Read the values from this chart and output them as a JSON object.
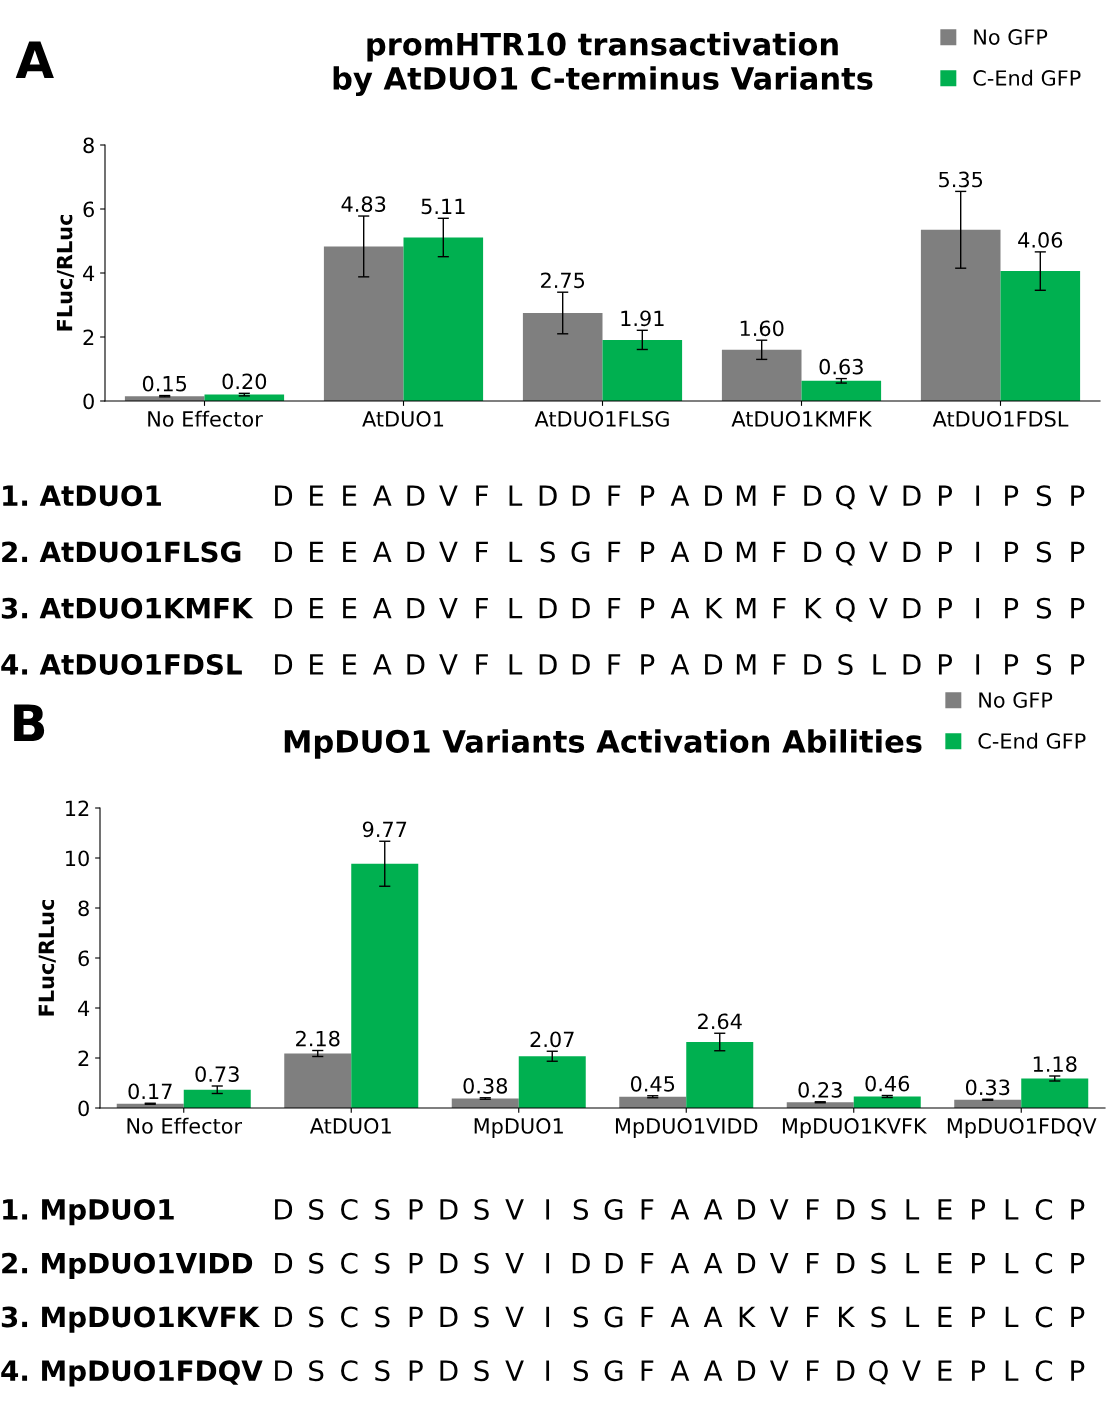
{
  "chart_data": [
    {
      "type": "bar",
      "title": "promHTR10 transactivation\nby AtDUO1 C-terminus Variants",
      "ylabel": "FLuc/RLuc",
      "annotations": [
        "A"
      ],
      "categories": [
        "No Effector",
        "AtDUO1",
        "AtDUO1FLSG",
        "AtDUO1KMFK",
        "AtDUO1FDSL"
      ],
      "series": [
        {
          "name": "No GFP",
          "color": "#7f7f7f",
          "values": [
            0.15,
            4.83,
            2.75,
            1.6,
            5.35
          ],
          "value_labels": [
            "0.15",
            "4.83",
            "2.75",
            "1.60",
            "5.35"
          ],
          "errors": [
            0.02,
            0.95,
            0.65,
            0.3,
            1.2
          ]
        },
        {
          "name": "C-End GFP",
          "color": "#00b050",
          "values": [
            0.2,
            5.11,
            1.91,
            0.63,
            4.06
          ],
          "value_labels": [
            "0.20",
            "5.11",
            "1.91",
            "0.63",
            "4.06"
          ],
          "errors": [
            0.04,
            0.6,
            0.3,
            0.07,
            0.6
          ]
        }
      ],
      "ylim": [
        0,
        8
      ],
      "yticks": [
        0,
        2,
        4,
        6,
        8
      ],
      "legend": "top right",
      "grid": false
    },
    {
      "type": "other",
      "annotations": [
        "1. AtDUO1",
        "DEEADVFLDDFPADMFDQVDPIPSP",
        "2. AtDUO1FLSG",
        "DEEADVFLSGFPADMFDQVDPIPSP",
        "3. AtDUO1KMFK",
        "DEEADVFLDDFPAKMFKQVDPIPSP",
        "4. AtDUO1FDSL",
        "DEEADVFLDDFPADMFDSLDPIPSP"
      ]
    },
    {
      "type": "bar",
      "title": "MpDUO1 Variants Activation Abilities",
      "ylabel": "FLuc/RLuc",
      "annotations": [
        "B"
      ],
      "categories": [
        "No Effector",
        "AtDUO1",
        "MpDUO1",
        "MpDUO1VIDD",
        "MpDUO1KVFK",
        "MpDUO1FDQV"
      ],
      "series": [
        {
          "name": "No GFP",
          "color": "#7f7f7f",
          "values": [
            0.17,
            2.18,
            0.38,
            0.45,
            0.23,
            0.33
          ],
          "value_labels": [
            "0.17",
            "2.18",
            "0.38",
            "0.45",
            "0.23",
            "0.33"
          ],
          "errors": [
            0.02,
            0.12,
            0.03,
            0.04,
            0.02,
            0.02
          ]
        },
        {
          "name": "C-End GFP",
          "color": "#00b050",
          "values": [
            0.73,
            9.77,
            2.07,
            2.64,
            0.46,
            1.18
          ],
          "value_labels": [
            "0.73",
            "9.77",
            "2.07",
            "2.64",
            "0.46",
            "1.18"
          ],
          "errors": [
            0.15,
            0.9,
            0.2,
            0.35,
            0.04,
            0.1
          ]
        }
      ],
      "ylim": [
        0,
        12
      ],
      "yticks": [
        0,
        2,
        4,
        6,
        8,
        10,
        12
      ],
      "legend": "top right",
      "grid": false
    },
    {
      "type": "other",
      "annotations": [
        "1. MpDUO1",
        "DSCSPDSVISGFAADVFDSLEPLCP",
        "2. MpDUO1VIDD",
        "DSCSPDSVIDDFAADVFDSLEPLCP",
        "3. MpDUO1KVFK",
        "DSCSPDSVISGFAAKVFKSLEPLCP",
        "4. MpDUO1FDQV",
        "DSCSPDSVISGFAADVFDQVEPLCP"
      ]
    }
  ]
}
